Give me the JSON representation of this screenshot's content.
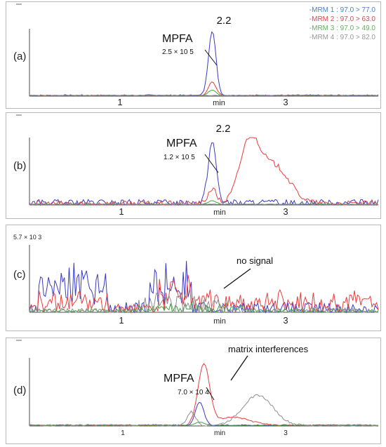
{
  "colors": {
    "mrm1": "#3a3ac8",
    "mrm2": "#ec3b3b",
    "mrm3": "#3ca63c",
    "mrm4": "#8e8e8e",
    "axis": "#4a4a4a",
    "legend_blue": "#4f7fc4",
    "legend_red": "#e0474c",
    "legend_green": "#5fb05f",
    "legend_gray": "#9a9a9a"
  },
  "legend": [
    "-MRM 1 : 97.0 > 77.0",
    "-MRM 2 : 97.0 > 63.0",
    "-MRM 3 : 97.0 > 49.0",
    "-MRM 4 : 97.0 > 82.0"
  ],
  "chart_data": [
    {
      "type": "line",
      "panel": "(a)",
      "xlim": [
        0,
        4.2
      ],
      "x_ticks": [
        "1",
        "min",
        "3"
      ],
      "x_tick_positions": [
        1,
        2,
        3
      ],
      "peak_label": "2.2",
      "compound": "MPFA",
      "intensity": "2.5 × 10 5",
      "series": [
        {
          "key": "mrm1",
          "peaks": [
            [
              2.2,
              0.96,
              0.045
            ]
          ],
          "noise": 0.012,
          "base": 0.01
        },
        {
          "key": "mrm2",
          "peaks": [
            [
              2.2,
              0.2,
              0.045
            ]
          ],
          "noise": 0.006,
          "base": 0.01
        },
        {
          "key": "mrm3",
          "peaks": [
            [
              2.2,
              0.08,
              0.045
            ]
          ],
          "noise": 0.004,
          "base": 0.01
        },
        {
          "key": "mrm4",
          "peaks": [],
          "noise": 0.004,
          "base": 0.01
        }
      ]
    },
    {
      "type": "line",
      "panel": "(b)",
      "xlim": [
        0,
        4.2
      ],
      "x_ticks": [
        "1",
        "min",
        "3"
      ],
      "x_tick_positions": [
        1,
        2,
        3
      ],
      "peak_label": "2.2",
      "compound": "MPFA",
      "intensity": "1.2 × 10 5",
      "series": [
        {
          "key": "mrm1",
          "peaks": [
            [
              2.2,
              0.9,
              0.05
            ]
          ],
          "noise": 0.05,
          "base": 0.03
        },
        {
          "key": "mrm2",
          "peaks": [
            [
              2.2,
              0.22,
              0.05
            ],
            [
              2.65,
              0.88,
              0.12
            ],
            [
              2.95,
              0.55,
              0.18
            ]
          ],
          "noise": 0.04,
          "base": 0.02
        },
        {
          "key": "mrm3",
          "peaks": [
            [
              2.2,
              0.05,
              0.05
            ]
          ],
          "noise": 0.005,
          "base": 0.01
        },
        {
          "key": "mrm4",
          "peaks": [],
          "noise": 0.005,
          "base": 0.01
        }
      ]
    },
    {
      "type": "line",
      "panel": "(c)",
      "xlim": [
        0,
        4.2
      ],
      "x_ticks": [
        "1",
        "min",
        "3"
      ],
      "x_tick_positions": [
        1,
        2,
        3
      ],
      "y_max_label": "5.7 × 10 3",
      "annotation": "no signal",
      "series": [
        {
          "key": "mrm1",
          "blocks": [
            [
              0.1,
              0.95,
              0.62,
              0.25
            ],
            [
              1.45,
              1.95,
              0.58,
              0.3
            ]
          ],
          "noise": 0.1,
          "base": 0.05
        },
        {
          "key": "mrm2",
          "blocks": [
            [
              0.1,
              0.95,
              0.18,
              0.12
            ],
            [
              1.55,
              1.95,
              0.4,
              0.2
            ],
            [
              1.95,
              4.2,
              0.18,
              0.12
            ]
          ],
          "noise": 0.08,
          "base": 0.04
        },
        {
          "key": "mrm3",
          "blocks": [
            [
              1.3,
              2.6,
              0.06,
              0.06
            ]
          ],
          "noise": 0.03,
          "base": 0.02
        },
        {
          "key": "mrm4",
          "blocks": [
            [
              1.3,
              2.4,
              0.18,
              0.15
            ]
          ],
          "noise": 0.04,
          "base": 0.02
        }
      ]
    },
    {
      "type": "line",
      "panel": "(d)",
      "xlim": [
        0,
        4.2
      ],
      "x_ticks": [
        "1",
        "min",
        "3"
      ],
      "x_tick_positions": [
        1,
        2,
        3
      ],
      "compound": "MPFA",
      "intensity": "7.0 × 10 4",
      "annotation": "matrix interferences",
      "series": [
        {
          "key": "mrm1",
          "peaks": [
            [
              2.05,
              0.35,
              0.05
            ]
          ],
          "noise": 0.01,
          "base": 0.01
        },
        {
          "key": "mrm2",
          "peaks": [
            [
              2.1,
              0.9,
              0.07
            ],
            [
              2.45,
              0.12,
              0.2
            ]
          ],
          "noise": 0.01,
          "base": 0.01
        },
        {
          "key": "mrm3",
          "peaks": [
            [
              2.05,
              0.05,
              0.05
            ]
          ],
          "noise": 0.003,
          "base": 0.01
        },
        {
          "key": "mrm4",
          "peaks": [
            [
              1.95,
              0.2,
              0.05
            ],
            [
              2.75,
              0.45,
              0.18
            ]
          ],
          "noise": 0.015,
          "base": 0.01
        }
      ]
    }
  ]
}
